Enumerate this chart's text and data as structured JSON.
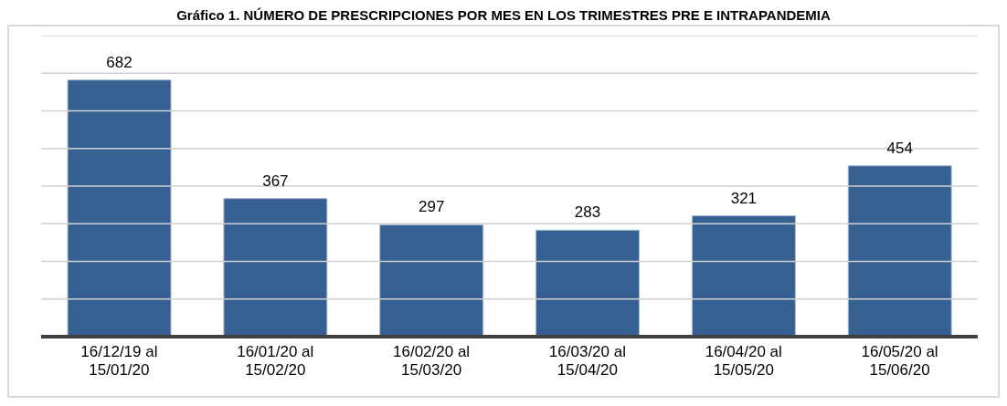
{
  "chart_data": {
    "type": "bar",
    "title": "Gráfico 1. NÚMERO DE PRESCRIPCIONES POR MES EN LOS TRIMESTRES PRE E INTRAPANDEMIA",
    "categories": [
      "16/12/19 al 15/01/20",
      "16/01/20 al 15/02/20",
      "16/02/20 al 15/03/20",
      "16/03/20 al 15/04/20",
      "16/04/20 al 15/05/20",
      "16/05/20 al 15/06/20"
    ],
    "values": [
      682,
      367,
      297,
      283,
      321,
      454
    ],
    "color": "#366092",
    "data_labels": true,
    "ylim": [
      0,
      800
    ],
    "yticks": [
      {
        "value": 0,
        "label": null
      },
      {
        "value": 100,
        "label": null
      },
      {
        "value": 200,
        "label": null
      },
      {
        "value": 300,
        "label": null
      },
      {
        "value": 400,
        "label": null
      },
      {
        "value": 500,
        "label": null
      },
      {
        "value": 600,
        "label": null
      },
      {
        "value": 700,
        "label": null
      },
      {
        "value": 800,
        "label": null
      }
    ],
    "grid": "y",
    "tick_labels": "x"
  }
}
